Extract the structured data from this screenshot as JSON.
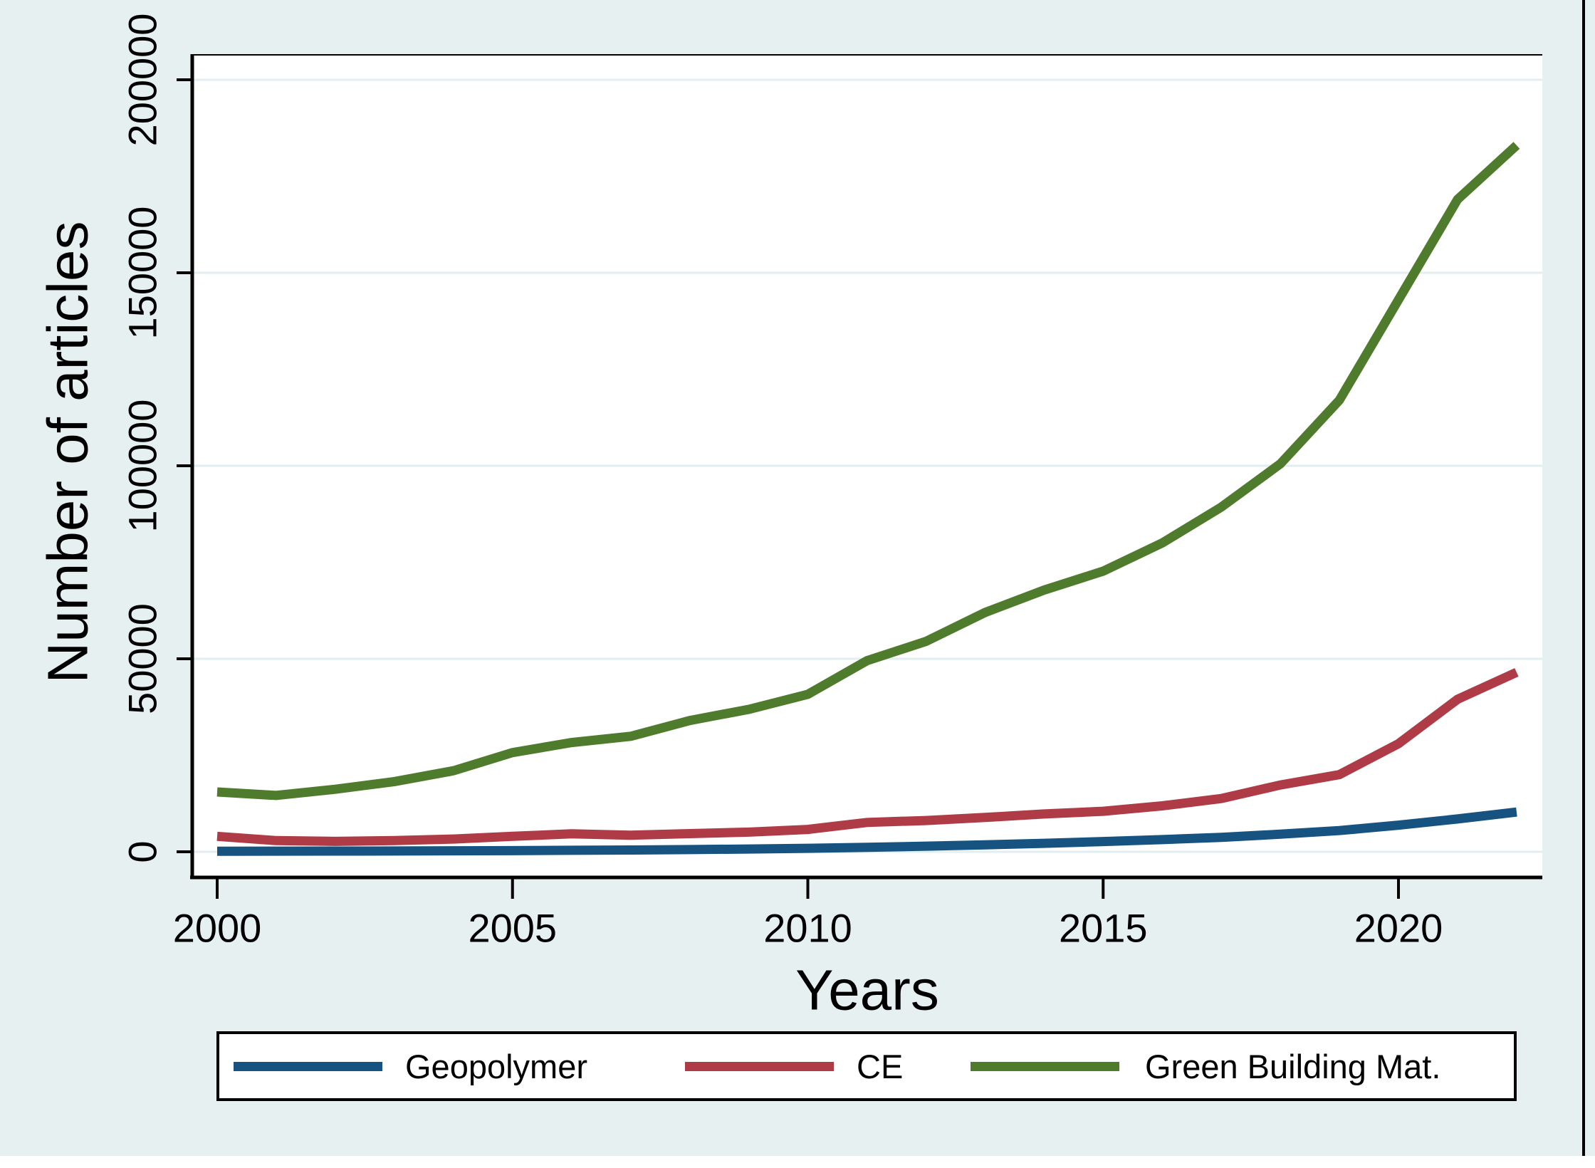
{
  "figure": {
    "background_color": "#e7f0f1",
    "plot_background": "#ffffff",
    "grid_color": "#e2eef0",
    "axis_color": "#000000"
  },
  "chart_data": {
    "type": "line",
    "title": "",
    "xlabel": "Years",
    "ylabel": "Number of articles",
    "x": [
      2000,
      2001,
      2002,
      2003,
      2004,
      2005,
      2006,
      2007,
      2008,
      2009,
      2010,
      2011,
      2012,
      2013,
      2014,
      2015,
      2016,
      2017,
      2018,
      2019,
      2020,
      2021,
      2022
    ],
    "x_ticks": [
      2000,
      2005,
      2010,
      2015,
      2020
    ],
    "x_tick_labels": [
      "2000",
      "2005",
      "2010",
      "2015",
      "2020"
    ],
    "y_ticks": [
      0,
      50000,
      100000,
      150000,
      200000
    ],
    "y_tick_labels": [
      "0",
      "50000",
      "100000",
      "150000",
      "200000"
    ],
    "xlim": [
      1999.6,
      2022.4
    ],
    "ylim": [
      0,
      206000
    ],
    "grid": "horizontal",
    "legend_position": "bottom",
    "series": [
      {
        "name": "Geopolymer",
        "color": "#175380",
        "values": [
          150,
          160,
          180,
          210,
          250,
          300,
          380,
          470,
          580,
          720,
          900,
          1150,
          1450,
          1800,
          2200,
          2650,
          3150,
          3750,
          4550,
          5500,
          6900,
          8500,
          10300
        ]
      },
      {
        "name": "CE",
        "color": "#ae3b45",
        "values": [
          4000,
          2900,
          2700,
          2900,
          3300,
          4000,
          4650,
          4300,
          4700,
          5100,
          5800,
          7600,
          8100,
          8900,
          9800,
          10500,
          11900,
          13800,
          17300,
          20000,
          28000,
          39500,
          46500
        ]
      },
      {
        "name": "Green Building Mat.",
        "color": "#4e7c2c",
        "values": [
          15500,
          14600,
          16200,
          18200,
          21000,
          25700,
          28300,
          29900,
          34000,
          36900,
          40800,
          49500,
          54500,
          62000,
          67800,
          72700,
          80000,
          89300,
          100500,
          117000,
          143000,
          169000,
          183000
        ]
      }
    ]
  }
}
